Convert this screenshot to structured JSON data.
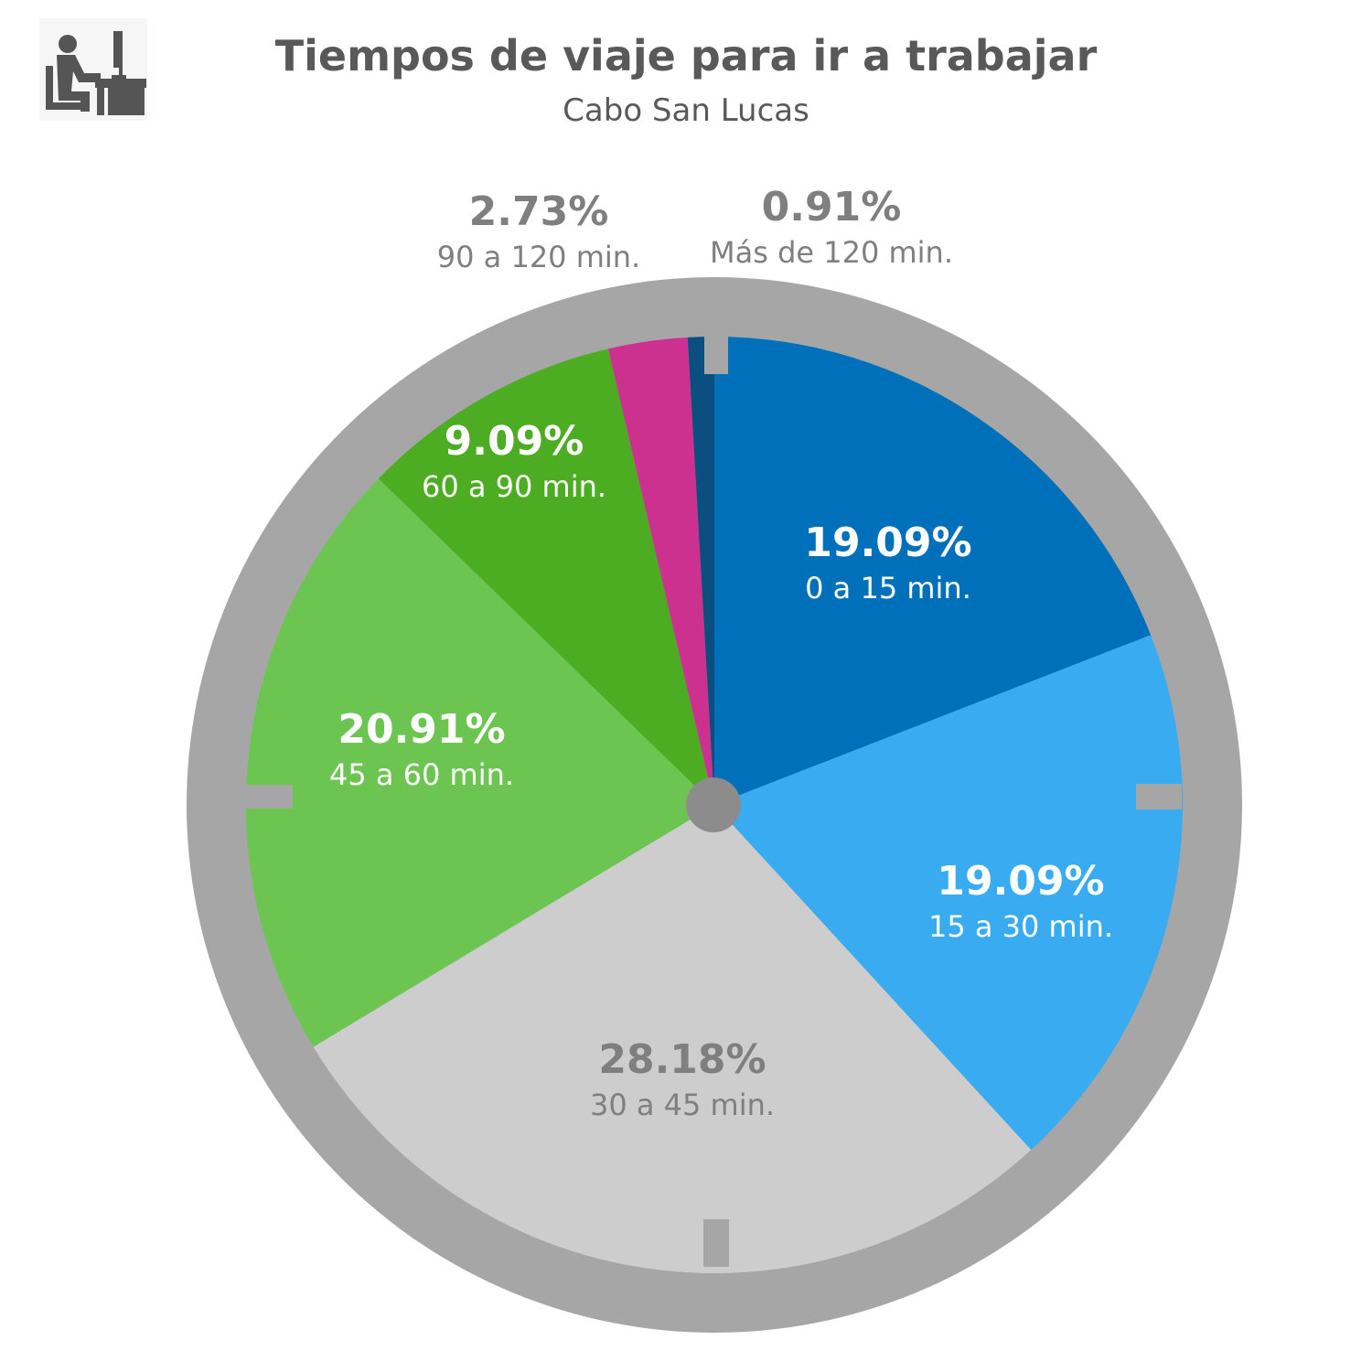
{
  "header": {
    "title": "Tiempos de viaje para ir a trabajar",
    "subtitle": "Cabo San Lucas",
    "icon": "person-at-desk-icon"
  },
  "chart_data": {
    "type": "pie",
    "title": "Tiempos de viaje para ir a trabajar",
    "subtitle": "Cabo San Lucas",
    "slices": [
      {
        "label": "0 a 15 min.",
        "value": 19.09,
        "value_label": "19.09%",
        "color": "#0070BA",
        "text_color": "#FFFFFF"
      },
      {
        "label": "15 a 30 min.",
        "value": 19.09,
        "value_label": "19.09%",
        "color": "#38ABF1",
        "text_color": "#FFFFFF"
      },
      {
        "label": "30 a 45 min.",
        "value": 28.18,
        "value_label": "28.18%",
        "color": "#CDCDCD",
        "text_color": "#7F7F7F"
      },
      {
        "label": "45 a 60 min.",
        "value": 20.91,
        "value_label": "20.91%",
        "color": "#6CC551",
        "text_color": "#FFFFFF"
      },
      {
        "label": "60 a 90 min.",
        "value": 9.09,
        "value_label": "9.09%",
        "color": "#4CAD22",
        "text_color": "#FFFFFF"
      },
      {
        "label": "90 a 120 min.",
        "value": 2.73,
        "value_label": "2.73%",
        "color": "#CC3190",
        "text_color": "#7F7F7F"
      },
      {
        "label": "Más de 120 min.",
        "value": 0.91,
        "value_label": "0.91%",
        "color": "#0B4F80",
        "text_color": "#7F7F7F"
      }
    ],
    "start": "12 o'clock",
    "direction": "clockwise",
    "legend": "none",
    "style": {
      "frame_color": "#A6A6A6",
      "hub_color": "#8C8C8C",
      "title_color": "#595959"
    }
  }
}
